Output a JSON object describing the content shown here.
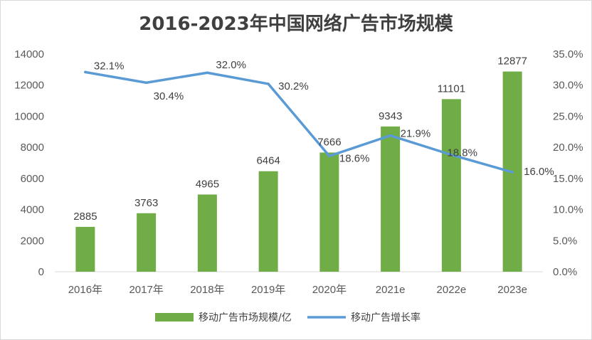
{
  "chart_data": {
    "type": "bar+line",
    "title": "2016-2023年中国网络广告市场规模",
    "categories": [
      "2016年",
      "2017年",
      "2018年",
      "2019年",
      "2020年",
      "2021e",
      "2022e",
      "2023e"
    ],
    "series": [
      {
        "name": "移动广告市场规模/亿",
        "type": "bar",
        "axis": "left",
        "color": "#70ad47",
        "values": [
          2885,
          3763,
          4965,
          6464,
          7666,
          9343,
          11101,
          12877
        ],
        "labels": [
          "2885",
          "3763",
          "4965",
          "6464",
          "7666",
          "9343",
          "11101",
          "12877"
        ]
      },
      {
        "name": "移动广告增长率",
        "type": "line",
        "axis": "right",
        "color": "#5b9bd5",
        "values": [
          32.1,
          30.4,
          32.0,
          30.2,
          18.6,
          21.9,
          18.8,
          16.0
        ],
        "labels": [
          "32.1%",
          "30.4%",
          "32.0%",
          "30.2%",
          "18.6%",
          "21.9%",
          "18.8%",
          "16.0%"
        ]
      }
    ],
    "y_left": {
      "range": [
        0,
        14000
      ],
      "ticks": [
        "0",
        "2000",
        "4000",
        "6000",
        "8000",
        "10000",
        "12000",
        "14000"
      ]
    },
    "y_right": {
      "range": [
        0,
        35
      ],
      "ticks": [
        "0.0%",
        "5.0%",
        "10.0%",
        "15.0%",
        "20.0%",
        "25.0%",
        "30.0%",
        "35.0%"
      ]
    },
    "grid": false,
    "legend": "bottom"
  }
}
